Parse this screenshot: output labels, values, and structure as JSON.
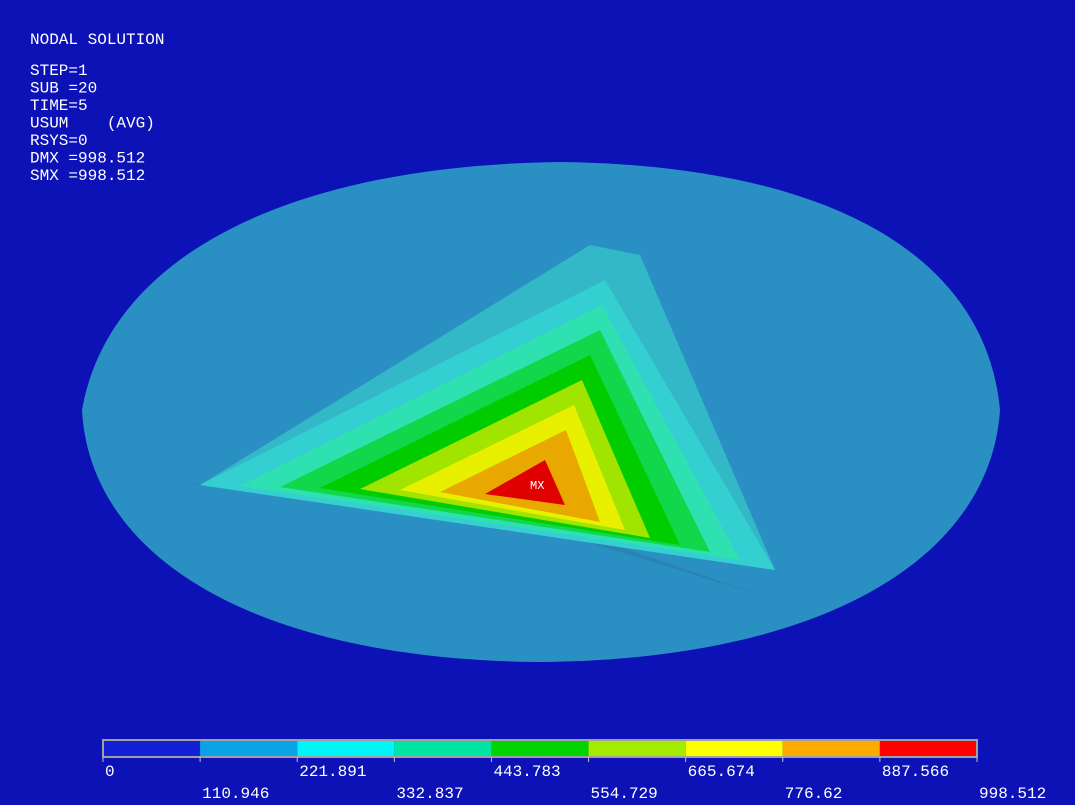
{
  "info": {
    "title": "NODAL SOLUTION",
    "lines": [
      "STEP=1",
      "SUB =20",
      "TIME=5",
      "USUM    (AVG)",
      "RSYS=0",
      "DMX =998.512",
      "SMX =998.512"
    ]
  },
  "marker": "MX",
  "legend": {
    "colors": [
      "#1420d8",
      "#0aa4e6",
      "#00f6f6",
      "#00e4a4",
      "#00d400",
      "#a4ec00",
      "#ffff00",
      "#ffaa00",
      "#ff0000"
    ],
    "labels": [
      0,
      110.946,
      221.891,
      332.837,
      443.783,
      554.729,
      665.674,
      776.62,
      887.566,
      998.512
    ]
  }
}
